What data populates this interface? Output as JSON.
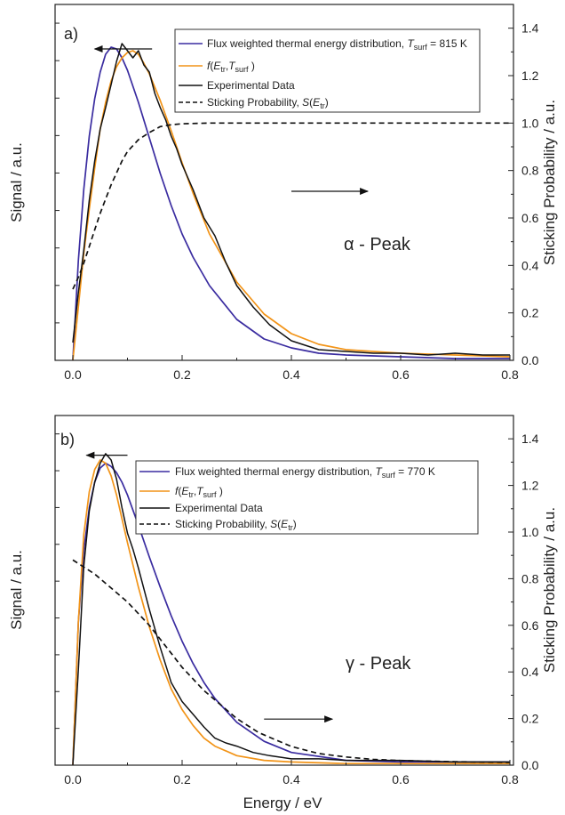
{
  "figure": {
    "xlabel": "Energy / eV"
  },
  "colors": {
    "flux": "#3a2ca0",
    "fit": "#f29418",
    "experimental": "#111111",
    "sticking": "#111111"
  },
  "chart_data": [
    {
      "panel_label": "a)",
      "type": "line",
      "title": "",
      "xlabel": "Energy / eV",
      "ylabel_left": "Signal / a.u.",
      "ylabel_right": "Sticking Probability / a.u.",
      "xlim": [
        0,
        0.8
      ],
      "ylim_right": [
        0,
        1.5
      ],
      "x_ticks": [
        "0.0",
        "0.2",
        "0.4",
        "0.6",
        "0.8"
      ],
      "y_right_ticks": [
        "0.0",
        "0.2",
        "0.4",
        "0.6",
        "0.8",
        "1.0",
        "1.2",
        "1.4"
      ],
      "annotation": "α - Peak",
      "legend": {
        "position": "top-right",
        "entries": [
          {
            "series": "flux",
            "text": "Flux weighted thermal energy distribution, ",
            "T": "T",
            "T_sub": "surf",
            "T_suffix": " = 815 K"
          },
          {
            "series": "fit",
            "f": "f",
            "paren_open": "(",
            "E": "E",
            "E_sub": "tr",
            "comma": ",",
            "T": "T",
            "T_sub": "surf",
            "paren_close": " )"
          },
          {
            "series": "experimental",
            "text": "Experimental Data"
          },
          {
            "series": "sticking",
            "text": "Sticking Probability, ",
            "S": "S",
            "paren_open": "(",
            "E": "E",
            "E_sub": "tr",
            "paren_close": ")"
          }
        ]
      },
      "arrows": [
        {
          "direction": "left",
          "from": [
            0.145,
            1.75
          ],
          "to": [
            0.04,
            1.75
          ]
        },
        {
          "direction": "right",
          "from": [
            0.4,
            0.95
          ],
          "to": [
            0.54,
            0.95
          ]
        }
      ],
      "series": [
        {
          "key": "flux",
          "style": "solid",
          "unit": "signal",
          "x": [
            0,
            0.01,
            0.02,
            0.03,
            0.04,
            0.05,
            0.06,
            0.07,
            0.08,
            0.09,
            0.1,
            0.12,
            0.14,
            0.16,
            0.18,
            0.2,
            0.22,
            0.25,
            0.3,
            0.35,
            0.4,
            0.45,
            0.5,
            0.6,
            0.7,
            0.8
          ],
          "y": [
            0,
            0.56,
            0.96,
            1.26,
            1.47,
            1.62,
            1.72,
            1.76,
            1.75,
            1.7,
            1.63,
            1.45,
            1.25,
            1.05,
            0.87,
            0.71,
            0.58,
            0.42,
            0.23,
            0.12,
            0.07,
            0.04,
            0.03,
            0.02,
            0.01,
            0.01
          ]
        },
        {
          "key": "fit",
          "style": "solid",
          "unit": "signal",
          "x": [
            0,
            0.01,
            0.02,
            0.03,
            0.04,
            0.05,
            0.06,
            0.07,
            0.08,
            0.09,
            0.1,
            0.11,
            0.12,
            0.13,
            0.14,
            0.16,
            0.18,
            0.2,
            0.22,
            0.25,
            0.3,
            0.35,
            0.4,
            0.45,
            0.5,
            0.6,
            0.7,
            0.8
          ],
          "y": [
            0,
            0.3,
            0.6,
            0.85,
            1.08,
            1.3,
            1.45,
            1.57,
            1.65,
            1.7,
            1.73,
            1.74,
            1.72,
            1.67,
            1.61,
            1.46,
            1.29,
            1.11,
            0.94,
            0.71,
            0.44,
            0.26,
            0.15,
            0.09,
            0.06,
            0.04,
            0.03,
            0.02
          ]
        },
        {
          "key": "experimental",
          "style": "solid",
          "unit": "signal",
          "x": [
            0,
            0.01,
            0.02,
            0.03,
            0.04,
            0.05,
            0.06,
            0.07,
            0.08,
            0.09,
            0.1,
            0.11,
            0.12,
            0.13,
            0.14,
            0.15,
            0.16,
            0.17,
            0.18,
            0.19,
            0.2,
            0.22,
            0.24,
            0.26,
            0.28,
            0.3,
            0.33,
            0.36,
            0.4,
            0.45,
            0.5,
            0.55,
            0.6,
            0.65,
            0.7,
            0.75,
            0.8
          ],
          "y": [
            0.1,
            0.38,
            0.62,
            0.9,
            1.12,
            1.3,
            1.42,
            1.55,
            1.68,
            1.78,
            1.74,
            1.7,
            1.74,
            1.66,
            1.62,
            1.5,
            1.42,
            1.35,
            1.26,
            1.19,
            1.1,
            0.96,
            0.8,
            0.7,
            0.55,
            0.42,
            0.3,
            0.2,
            0.11,
            0.06,
            0.05,
            0.04,
            0.04,
            0.03,
            0.04,
            0.03,
            0.03
          ]
        },
        {
          "key": "sticking",
          "style": "dashed",
          "unit": "probability",
          "x": [
            0,
            0.01,
            0.02,
            0.03,
            0.04,
            0.05,
            0.06,
            0.07,
            0.08,
            0.09,
            0.1,
            0.12,
            0.14,
            0.16,
            0.18,
            0.2,
            0.25,
            0.3,
            0.4,
            0.5,
            0.6,
            0.7,
            0.8
          ],
          "y": [
            0.3,
            0.35,
            0.41,
            0.48,
            0.55,
            0.62,
            0.68,
            0.74,
            0.79,
            0.84,
            0.88,
            0.93,
            0.96,
            0.985,
            0.993,
            0.997,
            1.0,
            1.0,
            1.0,
            1.0,
            1.0,
            1.0,
            1.0
          ]
        }
      ]
    },
    {
      "panel_label": "b)",
      "type": "line",
      "title": "",
      "xlabel": "Energy / eV",
      "ylabel_left": "Signal / a.u.",
      "ylabel_right": "Sticking Probability / a.u.",
      "xlim": [
        0,
        0.8
      ],
      "ylim_right": [
        0,
        1.5
      ],
      "x_ticks": [
        "0.0",
        "0.2",
        "0.4",
        "0.6",
        "0.8"
      ],
      "y_right_ticks": [
        "0.0",
        "0.2",
        "0.4",
        "0.6",
        "0.8",
        "1.0",
        "1.2",
        "1.4"
      ],
      "annotation": "γ - Peak",
      "legend": {
        "position": "top-right",
        "entries": [
          {
            "series": "flux",
            "text": "Flux weighted thermal energy distribution, ",
            "T": "T",
            "T_sub": "surf",
            "T_suffix": " = 770 K"
          },
          {
            "series": "fit",
            "f": "f",
            "paren_open": "(",
            "E": "E",
            "E_sub": "tr",
            "comma": ",",
            "T": "T",
            "T_sub": "surf",
            "paren_close": " )"
          },
          {
            "series": "experimental",
            "text": "Experimental Data"
          },
          {
            "series": "sticking",
            "text": "Sticking Probability, ",
            "S": "S",
            "paren_open": "(",
            "E": "E",
            "E_sub": "tr",
            "paren_close": ")"
          }
        ]
      },
      "arrows": [
        {
          "direction": "left",
          "from": [
            0.1,
            1.95
          ],
          "to": [
            0.025,
            1.95
          ]
        },
        {
          "direction": "right",
          "from": [
            0.35,
            0.29
          ],
          "to": [
            0.475,
            0.29
          ]
        }
      ],
      "series": [
        {
          "key": "flux",
          "style": "solid",
          "unit": "signal",
          "x": [
            0,
            0.01,
            0.02,
            0.03,
            0.04,
            0.05,
            0.06,
            0.07,
            0.08,
            0.09,
            0.1,
            0.12,
            0.14,
            0.16,
            0.18,
            0.2,
            0.22,
            0.24,
            0.26,
            0.3,
            0.35,
            0.4,
            0.5,
            0.6,
            0.8
          ],
          "y": [
            0,
            0.9,
            1.35,
            1.62,
            1.78,
            1.87,
            1.9,
            1.88,
            1.84,
            1.78,
            1.7,
            1.51,
            1.31,
            1.12,
            0.94,
            0.78,
            0.64,
            0.52,
            0.42,
            0.27,
            0.15,
            0.08,
            0.03,
            0.02,
            0.02
          ]
        },
        {
          "key": "fit",
          "style": "solid",
          "unit": "signal",
          "x": [
            0,
            0.01,
            0.02,
            0.03,
            0.04,
            0.05,
            0.06,
            0.07,
            0.08,
            0.09,
            0.1,
            0.12,
            0.14,
            0.16,
            0.18,
            0.2,
            0.22,
            0.24,
            0.26,
            0.3,
            0.35,
            0.4,
            0.5,
            0.6,
            0.8
          ],
          "y": [
            0,
            0.9,
            1.45,
            1.72,
            1.86,
            1.92,
            1.9,
            1.82,
            1.7,
            1.55,
            1.4,
            1.12,
            0.87,
            0.66,
            0.48,
            0.35,
            0.25,
            0.17,
            0.12,
            0.06,
            0.03,
            0.02,
            0.01,
            0.01,
            0.01
          ]
        },
        {
          "key": "experimental",
          "style": "solid",
          "unit": "signal",
          "x": [
            0,
            0.01,
            0.02,
            0.03,
            0.04,
            0.05,
            0.06,
            0.07,
            0.08,
            0.09,
            0.1,
            0.11,
            0.12,
            0.14,
            0.16,
            0.18,
            0.2,
            0.22,
            0.24,
            0.26,
            0.28,
            0.3,
            0.33,
            0.36,
            0.4,
            0.45,
            0.5,
            0.55,
            0.6,
            0.7,
            0.8
          ],
          "y": [
            0,
            0.6,
            1.25,
            1.6,
            1.78,
            1.9,
            1.96,
            1.92,
            1.8,
            1.62,
            1.46,
            1.36,
            1.24,
            0.98,
            0.74,
            0.52,
            0.4,
            0.32,
            0.24,
            0.17,
            0.14,
            0.12,
            0.08,
            0.06,
            0.04,
            0.04,
            0.03,
            0.03,
            0.03,
            0.02,
            0.02
          ]
        },
        {
          "key": "sticking",
          "style": "dashed",
          "unit": "probability",
          "x": [
            0,
            0.02,
            0.04,
            0.06,
            0.08,
            0.1,
            0.12,
            0.14,
            0.16,
            0.18,
            0.2,
            0.22,
            0.24,
            0.26,
            0.28,
            0.3,
            0.32,
            0.34,
            0.36,
            0.4,
            0.45,
            0.5,
            0.55,
            0.6,
            0.7,
            0.8
          ],
          "y": [
            0.88,
            0.85,
            0.82,
            0.78,
            0.74,
            0.7,
            0.65,
            0.6,
            0.54,
            0.48,
            0.42,
            0.37,
            0.32,
            0.28,
            0.24,
            0.2,
            0.17,
            0.14,
            0.12,
            0.08,
            0.05,
            0.035,
            0.025,
            0.02,
            0.015,
            0.012
          ]
        }
      ]
    }
  ]
}
